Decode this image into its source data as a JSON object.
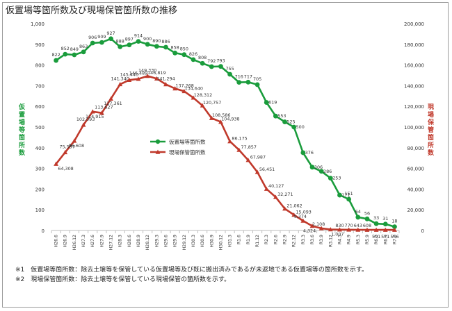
{
  "page": {
    "title": "仮置場等箇所数及び現場保管箇所数の推移",
    "left_axis_title": "仮置場等箇所数",
    "right_axis_title": "現場保管箇所数",
    "notes": [
      "※1　仮置場等箇所数：除去土壌等を保管している仮置場等及び既に搬出済みであるが未返地である仮置場等の箇所数を示す。",
      "※2　現場保管箇所数：除去土壌等を保管している現場保管の箇所数を示す。"
    ]
  },
  "chart_data": {
    "type": "line",
    "x": [
      "H26.6",
      "H26.9",
      "H26.12",
      "H27.3",
      "H27.6",
      "H27.9",
      "H27.12",
      "H28.3",
      "H28.6",
      "H28.9",
      "H28.12",
      "H29.3",
      "H29.6",
      "H29.9",
      "H29.12",
      "H30.3",
      "H30.6",
      "H30.9",
      "H30.12",
      "H31.3",
      "R1.6",
      "R1.9",
      "R1.12",
      "R2.3",
      "R2.6",
      "R2.9",
      "R2.12",
      "R3.3",
      "R3.6",
      "R3.9",
      "R3.12",
      "R4.3",
      "R4.9",
      "R5.3",
      "R5.9",
      "R6.3",
      "R6.9",
      "R7.3"
    ],
    "series": [
      {
        "name": "仮置場等箇所数",
        "axis": "left",
        "color": "#1a9c3c",
        "marker": "circle",
        "x_index": [
          0,
          1,
          2,
          3,
          4,
          5,
          6,
          7,
          8,
          9,
          10,
          11,
          12,
          13,
          14,
          15,
          16,
          17,
          18,
          19,
          20,
          21,
          22,
          23,
          24,
          25,
          26,
          27,
          28,
          29,
          30,
          31,
          32,
          33,
          34,
          35,
          36,
          37
        ],
        "values": [
          822,
          852,
          849,
          863,
          906,
          909,
          927,
          888,
          897,
          914,
          900,
          890,
          886,
          858,
          850,
          826,
          808,
          792,
          793,
          755,
          716,
          717,
          705,
          619,
          553,
          525,
          500,
          376,
          306,
          286,
          253,
          171,
          151,
          64,
          56,
          33,
          31,
          18
        ],
        "labels": [
          "822",
          "852",
          "849",
          "863",
          "906",
          "909",
          "927",
          "888",
          "897",
          "914",
          "900",
          "890",
          "886",
          "858",
          "850",
          "826",
          "808",
          "792",
          "793",
          "755",
          "716",
          "717",
          "705",
          "619",
          "553",
          "525",
          "500",
          "376",
          "306",
          "286",
          "253",
          "171",
          "151",
          "64",
          "56",
          "33",
          "31",
          "18"
        ]
      },
      {
        "name": "現場保管箇所数",
        "axis": "right",
        "color": "#c0392b",
        "marker": "triangle",
        "x_index": [
          0,
          1,
          2,
          3,
          4,
          5,
          6,
          7,
          8,
          9,
          10,
          11,
          12,
          13,
          14,
          15,
          16,
          17,
          18,
          19,
          20,
          21,
          22,
          23,
          24,
          25,
          26,
          27,
          28,
          29,
          30,
          31,
          32,
          33,
          34,
          35,
          36,
          37
        ],
        "values": [
          64308,
          75537,
          86608,
          102093,
          114915,
          113627,
          127361,
          141340,
          145440,
          146489,
          149330,
          146819,
          141294,
          137268,
          134640,
          128312,
          120757,
          108586,
          104938,
          86175,
          77857,
          67987,
          56451,
          40127,
          32271,
          21062,
          15093,
          9374,
          4324,
          2108,
          1007,
          830,
          770,
          643,
          608,
          591,
          571,
          556
        ],
        "labels": [
          "64,308",
          "75,537",
          "86,608",
          "102,093",
          "114,915",
          "113,627",
          "127,361",
          "141,340",
          "145,440",
          "146,489",
          "149,330",
          "146,819",
          "141,294",
          "137,268",
          "134,640",
          "128,312",
          "120,757",
          "108,586",
          "104,938",
          "86,175",
          "77,857",
          "67,987",
          "56,451",
          "40,127",
          "32,271",
          "21,062",
          "15,093",
          "9,374",
          "4,324",
          "2,108",
          "1,007",
          "830",
          "770",
          "643",
          "608",
          "591",
          "571",
          "556"
        ]
      }
    ],
    "y_left": {
      "min": 0,
      "max": 1000,
      "ticks": [
        0,
        100,
        200,
        300,
        400,
        500,
        600,
        700,
        800,
        900,
        1000
      ],
      "tick_labels": [
        "0",
        "100",
        "200",
        "300",
        "400",
        "500",
        "600",
        "700",
        "800",
        "900",
        "1,000"
      ]
    },
    "y_right": {
      "min": 0,
      "max": 200000,
      "ticks": [
        0,
        20000,
        40000,
        60000,
        80000,
        100000,
        120000,
        140000,
        160000,
        180000,
        200000
      ],
      "tick_labels": [
        "0",
        "20,000",
        "40,000",
        "60,000",
        "80,000",
        "100,000",
        "120,000",
        "140,000",
        "160,000",
        "180,000",
        "200,000"
      ]
    },
    "grid": false,
    "legend": "center"
  }
}
